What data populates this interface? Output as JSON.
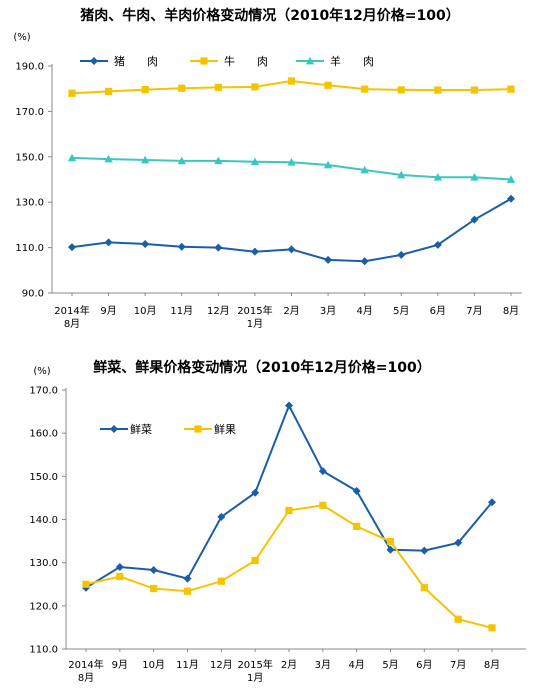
{
  "chart_data": [
    {
      "type": "line",
      "title": "猪肉、牛肉、羊肉价格变动情况（2010年12月价格=100）",
      "unit": "(%)",
      "categories": [
        [
          "2014年",
          "8月"
        ],
        [
          "9月"
        ],
        [
          "10月"
        ],
        [
          "11月"
        ],
        [
          "12月"
        ],
        [
          "2015年",
          "1月"
        ],
        [
          "2月"
        ],
        [
          "3月"
        ],
        [
          "4月"
        ],
        [
          "5月"
        ],
        [
          "6月"
        ],
        [
          "7月"
        ],
        [
          "8月"
        ]
      ],
      "ylim": [
        90,
        190
      ],
      "yticks": [
        "190.0",
        "170.0",
        "150.0",
        "130.0",
        "110.0",
        "90.0"
      ],
      "yticks_values": [
        190,
        170,
        150,
        130,
        110,
        90
      ],
      "legend_position": "top-left",
      "series": [
        {
          "name": "猪　　肉",
          "color": "#1b5ea8",
          "marker": "diamond",
          "values": [
            110.2,
            112.3,
            111.6,
            110.4,
            110.0,
            108.2,
            109.2,
            104.6,
            104.0,
            106.8,
            111.2,
            122.3,
            131.5
          ]
        },
        {
          "name": "牛　　肉",
          "color": "#f5c400",
          "marker": "square",
          "values": [
            178.0,
            178.8,
            179.6,
            180.2,
            180.6,
            180.8,
            183.4,
            181.5,
            179.8,
            179.5,
            179.4,
            179.4,
            179.8
          ]
        },
        {
          "name": "羊　　肉",
          "color": "#3cc6c2",
          "marker": "triangle",
          "values": [
            149.5,
            149.0,
            148.6,
            148.2,
            148.2,
            147.8,
            147.6,
            146.4,
            144.2,
            142.0,
            141.0,
            141.0,
            140.0
          ]
        }
      ]
    },
    {
      "type": "line",
      "title": "鲜菜、鲜果价格变动情况（2010年12月价格=100）",
      "unit": "(%)",
      "categories": [
        [
          "2014年",
          "8月"
        ],
        [
          "9月"
        ],
        [
          "10月"
        ],
        [
          "11月"
        ],
        [
          "12月"
        ],
        [
          "2015年",
          "1月"
        ],
        [
          "2月"
        ],
        [
          "3月"
        ],
        [
          "4月"
        ],
        [
          "5月"
        ],
        [
          "6月"
        ],
        [
          "7月"
        ],
        [
          "8月"
        ]
      ],
      "ylim": [
        110,
        170
      ],
      "yticks": [
        "170.0",
        "160.0",
        "150.0",
        "140.0",
        "130.0",
        "120.0",
        "110.0"
      ],
      "yticks_values": [
        170,
        160,
        150,
        140,
        130,
        120,
        110
      ],
      "legend_position": "top-left",
      "series": [
        {
          "name": "鲜菜",
          "color": "#1b5ea8",
          "marker": "diamond",
          "values": [
            124.2,
            129.0,
            128.3,
            126.3,
            140.6,
            146.2,
            166.4,
            151.2,
            146.6,
            133.0,
            132.8,
            134.6,
            144.0
          ]
        },
        {
          "name": "鲜果",
          "color": "#f5c400",
          "marker": "square",
          "values": [
            125.0,
            126.8,
            124.0,
            123.4,
            125.7,
            130.5,
            142.1,
            143.3,
            138.4,
            134.9,
            124.2,
            116.9,
            114.9
          ]
        }
      ]
    }
  ]
}
